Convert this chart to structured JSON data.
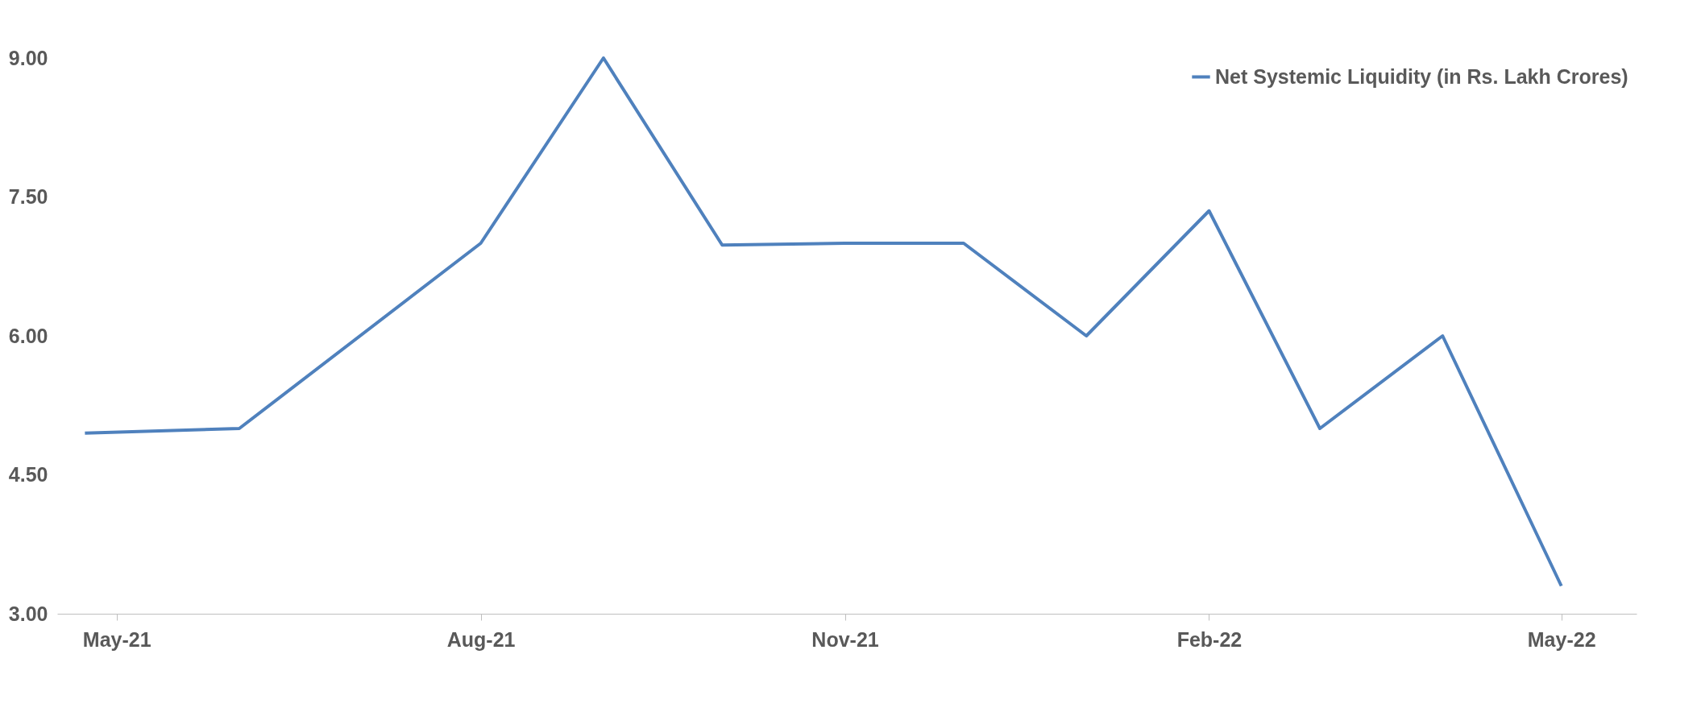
{
  "chart_data": {
    "type": "line",
    "x": [
      "2021-04-23",
      "2021-06-01",
      "2021-08-01",
      "2021-09-01",
      "2021-10-01",
      "2021-11-01",
      "2021-12-01",
      "2022-01-01",
      "2022-02-01",
      "2022-03-01",
      "2022-04-01",
      "2022-05-01"
    ],
    "series": [
      {
        "name": "Net Systemic Liquidity (in Rs. Lakh Crores)",
        "color": "#4f81bd",
        "values": [
          4.95,
          5.0,
          7.0,
          9.0,
          6.98,
          7.0,
          7.0,
          6.0,
          7.35,
          5.0,
          6.0,
          3.3
        ]
      }
    ],
    "xlim": [
      "2021-04-16",
      "2022-05-20"
    ],
    "xticks": [
      {
        "value": "2021-05-01",
        "label": "May-21"
      },
      {
        "value": "2021-08-01",
        "label": "Aug-21"
      },
      {
        "value": "2021-11-01",
        "label": "Nov-21"
      },
      {
        "value": "2022-02-01",
        "label": "Feb-22"
      },
      {
        "value": "2022-05-01",
        "label": "May-22"
      }
    ],
    "ylim": [
      3,
      9
    ],
    "yticks": [
      {
        "value": 3,
        "label": "3.00"
      },
      {
        "value": 4.5,
        "label": "4.50"
      },
      {
        "value": 6,
        "label": "6.00"
      },
      {
        "value": 7.5,
        "label": "7.50"
      },
      {
        "value": 9,
        "label": "9.00"
      }
    ],
    "grid": false,
    "legend": "top right",
    "marker": "none",
    "line_style": "solid"
  }
}
